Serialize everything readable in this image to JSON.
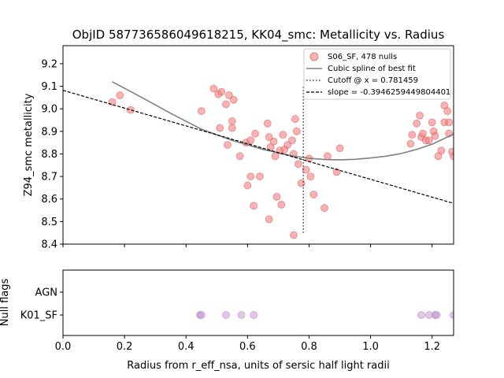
{
  "chart_data": [
    {
      "type": "scatter",
      "title": "ObjID 587736586049618215, KK04_smc: Metallicity vs. Radius",
      "xlabel": "",
      "ylabel": "Z94_smc metallicity",
      "xlim": [
        0.0,
        1.27
      ],
      "ylim": [
        8.4,
        9.28
      ],
      "yticks": [
        8.4,
        8.5,
        8.6,
        8.7,
        8.8,
        8.9,
        9.0,
        9.1,
        9.2
      ],
      "grid": false,
      "legend_position": "top-right",
      "colors": {
        "points": "#f08080",
        "spline": "#808080",
        "cutoff": "#404040",
        "fit": "#000000"
      },
      "series": [
        {
          "name": "S06_SF, 478 nulls",
          "kind": "scatter",
          "points": [
            [
              0.16,
              9.03
            ],
            [
              0.185,
              9.06
            ],
            [
              0.22,
              8.995
            ],
            [
              0.45,
              8.99
            ],
            [
              0.49,
              9.09
            ],
            [
              0.505,
              9.065
            ],
            [
              0.515,
              9.075
            ],
            [
              0.51,
              8.915
            ],
            [
              0.53,
              9.02
            ],
            [
              0.535,
              8.84
            ],
            [
              0.54,
              9.06
            ],
            [
              0.55,
              8.945
            ],
            [
              0.55,
              8.915
            ],
            [
              0.555,
              9.04
            ],
            [
              0.575,
              8.79
            ],
            [
              0.595,
              8.85
            ],
            [
              0.6,
              8.66
            ],
            [
              0.61,
              8.86
            ],
            [
              0.61,
              8.7
            ],
            [
              0.62,
              8.57
            ],
            [
              0.625,
              8.89
            ],
            [
              0.64,
              8.7
            ],
            [
              0.665,
              8.935
            ],
            [
              0.67,
              8.875
            ],
            [
              0.67,
              8.51
            ],
            [
              0.675,
              8.83
            ],
            [
              0.685,
              8.855
            ],
            [
              0.69,
              8.79
            ],
            [
              0.695,
              8.61
            ],
            [
              0.705,
              8.815
            ],
            [
              0.71,
              8.575
            ],
            [
              0.715,
              8.885
            ],
            [
              0.72,
              8.82
            ],
            [
              0.73,
              8.84
            ],
            [
              0.745,
              8.86
            ],
            [
              0.75,
              8.8
            ],
            [
              0.75,
              8.44
            ],
            [
              0.755,
              8.955
            ],
            [
              0.76,
              8.9
            ],
            [
              0.765,
              8.755
            ],
            [
              0.775,
              8.67
            ],
            [
              0.79,
              8.73
            ],
            [
              0.8,
              8.78
            ],
            [
              0.805,
              8.7
            ],
            [
              0.815,
              8.62
            ],
            [
              0.85,
              8.56
            ],
            [
              0.86,
              8.79
            ],
            [
              0.89,
              8.72
            ],
            [
              0.9,
              8.825
            ],
            [
              1.13,
              8.845
            ],
            [
              1.135,
              8.885
            ],
            [
              1.15,
              8.935
            ],
            [
              1.16,
              8.97
            ],
            [
              1.165,
              8.875
            ],
            [
              1.17,
              8.89
            ],
            [
              1.18,
              8.86
            ],
            [
              1.19,
              8.86
            ],
            [
              1.2,
              8.94
            ],
            [
              1.205,
              8.9
            ],
            [
              1.21,
              8.88
            ],
            [
              1.22,
              8.79
            ],
            [
              1.23,
              8.815
            ],
            [
              1.24,
              9.015
            ],
            [
              1.24,
              8.94
            ],
            [
              1.25,
              8.99
            ],
            [
              1.255,
              8.94
            ],
            [
              1.255,
              8.89
            ],
            [
              1.265,
              8.81
            ],
            [
              1.27,
              8.79
            ]
          ]
        },
        {
          "name": "Cubic spline of best fit",
          "kind": "line",
          "points": [
            [
              0.16,
              9.12
            ],
            [
              0.25,
              9.055
            ],
            [
              0.35,
              8.98
            ],
            [
              0.45,
              8.91
            ],
            [
              0.55,
              8.86
            ],
            [
              0.65,
              8.82
            ],
            [
              0.75,
              8.79
            ],
            [
              0.8,
              8.781
            ],
            [
              0.85,
              8.775
            ],
            [
              0.9,
              8.774
            ],
            [
              0.95,
              8.776
            ],
            [
              1.0,
              8.782
            ],
            [
              1.05,
              8.79
            ],
            [
              1.1,
              8.802
            ],
            [
              1.15,
              8.82
            ],
            [
              1.2,
              8.843
            ],
            [
              1.27,
              8.888
            ]
          ]
        },
        {
          "name": "Cutoff @ x = 0.781459",
          "kind": "vline",
          "x": 0.781459,
          "y_range": [
            8.45,
            9.1
          ]
        },
        {
          "name": "slope = -0.3946259449804401",
          "kind": "line",
          "slope": -0.3946259449804401,
          "intercept": 9.082
        }
      ]
    },
    {
      "type": "scatter",
      "title": "",
      "xlabel": "Radius from r_eff_nsa, units of sersic half light radii",
      "ylabel": "Null flags",
      "xlim": [
        0.0,
        1.27
      ],
      "xticks": [
        0.0,
        0.2,
        0.4,
        0.6,
        0.8,
        1.0,
        1.2
      ],
      "xtick_labels": [
        "0.0",
        "0.2",
        "0.4",
        "0.6",
        "0.8",
        "1.0",
        "1.2"
      ],
      "categories": [
        "K01_SF",
        "AGN"
      ],
      "colors": {
        "points": "#c08fd0"
      },
      "series": [
        {
          "category": "K01_SF",
          "x": [
            0.445,
            0.45,
            0.53,
            0.58,
            0.62,
            1.165,
            1.19,
            1.21,
            1.215,
            1.27
          ]
        }
      ]
    }
  ]
}
